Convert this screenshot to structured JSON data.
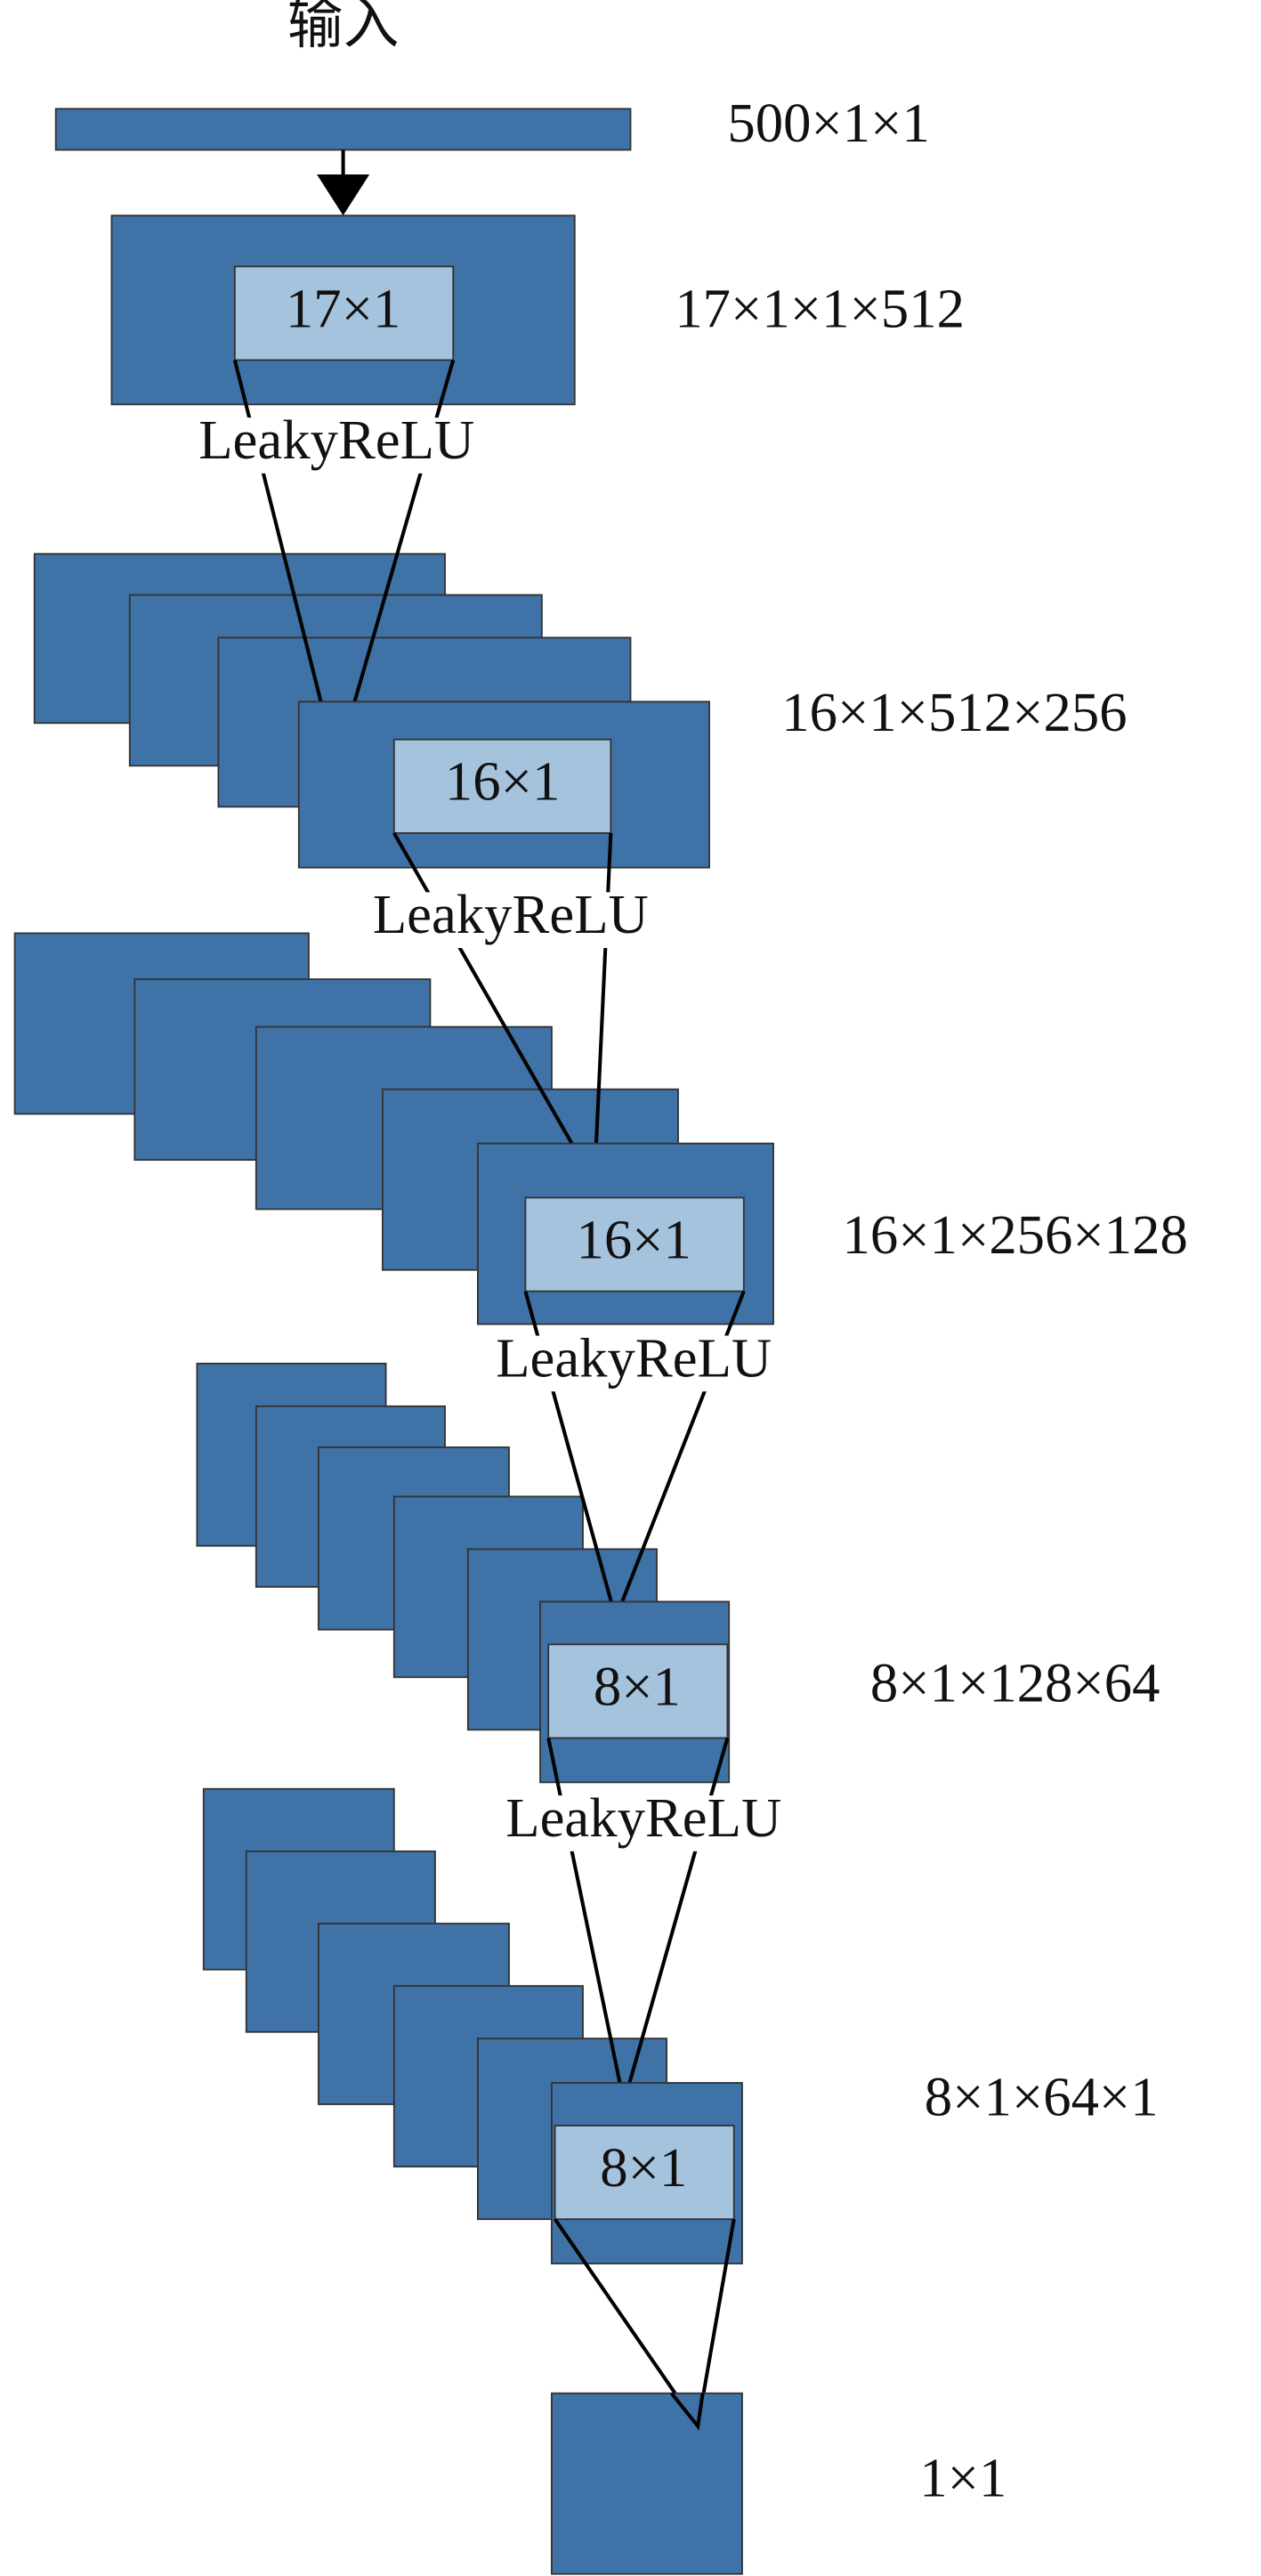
{
  "input_label": "输入",
  "layers": [
    {
      "shape": "500×1×1"
    },
    {
      "kernel": "17×1",
      "activation": "LeakyReLU",
      "shape": "17×1×1×512"
    },
    {
      "kernel": "16×1",
      "activation": "LeakyReLU",
      "shape": "16×1×512×256"
    },
    {
      "kernel": "16×1",
      "activation": "LeakyReLU",
      "shape": "16×1×256×128"
    },
    {
      "kernel": "8×1",
      "activation": "LeakyReLU",
      "shape": "8×1×128×64"
    },
    {
      "kernel": "8×1",
      "shape": "8×1×64×1"
    },
    {
      "shape": "1×1"
    }
  ]
}
